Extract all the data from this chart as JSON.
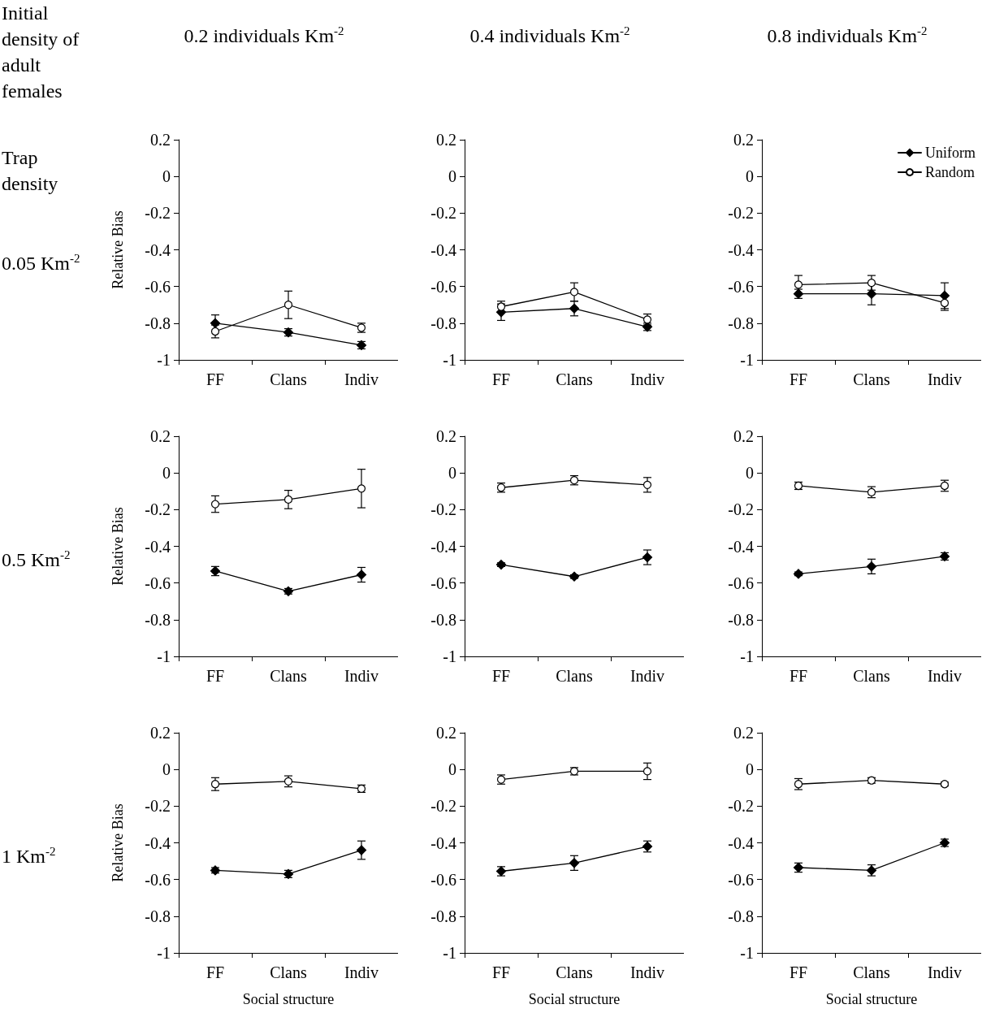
{
  "chart_data": [
    {
      "type": "line",
      "title": "0.2 individuals Km$^{-2}$",
      "ylabel": "Relative Bias",
      "annotations": [
        "Initial density of adult females",
        "Trap density",
        "0.05 Km$^{-2}$"
      ],
      "categories": [
        "FF",
        "Clans",
        "Indiv"
      ],
      "ylim": [
        -1,
        0.2
      ],
      "yticks": [
        -1,
        -0.8,
        -0.6,
        -0.4,
        -0.2,
        0,
        0.2
      ],
      "grid": false,
      "legend": false,
      "tick_labels": true,
      "series": [
        {
          "color": "#000000",
          "marker": "diamond",
          "values": [
            -0.8,
            -0.85,
            -0.92
          ],
          "errors": [
            0.045,
            0.02,
            0.02
          ]
        },
        {
          "color": "#000000",
          "marker": "circle",
          "values": [
            -0.845,
            -0.7,
            -0.825
          ],
          "errors": [
            0.035,
            0.075,
            0.025
          ]
        }
      ]
    },
    {
      "type": "line",
      "title": "0.4 individuals Km$^{-2}$",
      "categories": [
        "FF",
        "Clans",
        "Indiv"
      ],
      "ylim": [
        -1,
        0.2
      ],
      "yticks": [
        -1,
        -0.8,
        -0.6,
        -0.4,
        -0.2,
        0,
        0.2
      ],
      "grid": false,
      "legend": false,
      "series": [
        {
          "color": "#000000",
          "marker": "diamond",
          "values": [
            -0.74,
            -0.72,
            -0.82
          ],
          "errors": [
            0.045,
            0.04,
            0.02
          ]
        },
        {
          "color": "#000000",
          "marker": "circle",
          "values": [
            -0.71,
            -0.63,
            -0.78
          ],
          "errors": [
            0.03,
            0.05,
            0.03
          ]
        }
      ]
    },
    {
      "type": "line",
      "title": "0.8 individuals Km$^{-2}$",
      "categories": [
        "FF",
        "Clans",
        "Indiv"
      ],
      "ylim": [
        -1,
        0.2
      ],
      "yticks": [
        -1,
        -0.8,
        -0.6,
        -0.4,
        -0.2,
        0,
        0.2
      ],
      "grid": false,
      "legend": "top right",
      "series": [
        {
          "name": "Uniform",
          "color": "#000000",
          "marker": "diamond",
          "values": [
            -0.64,
            -0.64,
            -0.65
          ],
          "errors": [
            0.025,
            0.06,
            0.07
          ]
        },
        {
          "name": "Random",
          "color": "#000000",
          "marker": "circle",
          "values": [
            -0.59,
            -0.58,
            -0.69
          ],
          "errors": [
            0.05,
            0.04,
            0.04
          ]
        }
      ]
    },
    {
      "type": "line",
      "ylabel": "Relative Bias",
      "annotations": [
        "0.5 Km$^{-2}$"
      ],
      "categories": [
        "FF",
        "Clans",
        "Indiv"
      ],
      "ylim": [
        -1,
        0.2
      ],
      "yticks": [
        -1,
        -0.8,
        -0.6,
        -0.4,
        -0.2,
        0,
        0.2
      ],
      "grid": false,
      "legend": false,
      "series": [
        {
          "color": "#000000",
          "marker": "diamond",
          "values": [
            -0.535,
            -0.645,
            -0.555
          ],
          "errors": [
            0.025,
            0.015,
            0.04
          ]
        },
        {
          "color": "#000000",
          "marker": "circle",
          "values": [
            -0.17,
            -0.145,
            -0.085
          ],
          "errors": [
            0.045,
            0.05,
            0.105
          ]
        }
      ]
    },
    {
      "type": "line",
      "categories": [
        "FF",
        "Clans",
        "Indiv"
      ],
      "ylim": [
        -1,
        0.2
      ],
      "yticks": [
        -1,
        -0.8,
        -0.6,
        -0.4,
        -0.2,
        0,
        0.2
      ],
      "grid": false,
      "legend": false,
      "series": [
        {
          "color": "#000000",
          "marker": "diamond",
          "values": [
            -0.5,
            -0.565,
            -0.46
          ],
          "errors": [
            0.01,
            0.01,
            0.04
          ]
        },
        {
          "color": "#000000",
          "marker": "circle",
          "values": [
            -0.08,
            -0.04,
            -0.065
          ],
          "errors": [
            0.025,
            0.025,
            0.04
          ]
        }
      ]
    },
    {
      "type": "line",
      "categories": [
        "FF",
        "Clans",
        "Indiv"
      ],
      "ylim": [
        -1,
        0.2
      ],
      "yticks": [
        -1,
        -0.8,
        -0.6,
        -0.4,
        -0.2,
        0,
        0.2
      ],
      "grid": false,
      "legend": false,
      "series": [
        {
          "color": "#000000",
          "marker": "diamond",
          "values": [
            -0.55,
            -0.51,
            -0.455
          ],
          "errors": [
            0.01,
            0.04,
            0.02
          ]
        },
        {
          "color": "#000000",
          "marker": "circle",
          "values": [
            -0.07,
            -0.105,
            -0.07
          ],
          "errors": [
            0.02,
            0.03,
            0.03
          ]
        }
      ]
    },
    {
      "type": "line",
      "ylabel": "Relative Bias",
      "xlabel": "Social structure",
      "annotations": [
        "1 Km$^{-2}$"
      ],
      "categories": [
        "FF",
        "Clans",
        "Indiv"
      ],
      "ylim": [
        -1,
        0.2
      ],
      "yticks": [
        -1,
        -0.8,
        -0.6,
        -0.4,
        -0.2,
        0,
        0.2
      ],
      "grid": false,
      "legend": false,
      "series": [
        {
          "color": "#000000",
          "marker": "diamond",
          "values": [
            -0.55,
            -0.57,
            -0.44
          ],
          "errors": [
            0.015,
            0.02,
            0.05
          ]
        },
        {
          "color": "#000000",
          "marker": "circle",
          "values": [
            -0.08,
            -0.065,
            -0.105
          ],
          "errors": [
            0.035,
            0.03,
            0.02
          ]
        }
      ]
    },
    {
      "type": "line",
      "xlabel": "Social structure",
      "categories": [
        "FF",
        "Clans",
        "Indiv"
      ],
      "ylim": [
        -1,
        0.2
      ],
      "yticks": [
        -1,
        -0.8,
        -0.6,
        -0.4,
        -0.2,
        0,
        0.2
      ],
      "grid": false,
      "legend": false,
      "series": [
        {
          "color": "#000000",
          "marker": "diamond",
          "values": [
            -0.555,
            -0.51,
            -0.42
          ],
          "errors": [
            0.025,
            0.04,
            0.03
          ]
        },
        {
          "color": "#000000",
          "marker": "circle",
          "values": [
            -0.055,
            -0.01,
            -0.01
          ],
          "errors": [
            0.025,
            0.02,
            0.045
          ]
        }
      ]
    },
    {
      "type": "line",
      "xlabel": "Social structure",
      "categories": [
        "FF",
        "Clans",
        "Indiv"
      ],
      "ylim": [
        -1,
        0.2
      ],
      "yticks": [
        -1,
        -0.8,
        -0.6,
        -0.4,
        -0.2,
        0,
        0.2
      ],
      "grid": false,
      "legend": false,
      "series": [
        {
          "color": "#000000",
          "marker": "diamond",
          "values": [
            -0.535,
            -0.55,
            -0.4
          ],
          "errors": [
            0.025,
            0.03,
            0.02
          ]
        },
        {
          "color": "#000000",
          "marker": "circle",
          "values": [
            -0.08,
            -0.06,
            -0.08
          ],
          "errors": [
            0.03,
            0.015,
            0.01
          ]
        }
      ]
    }
  ]
}
